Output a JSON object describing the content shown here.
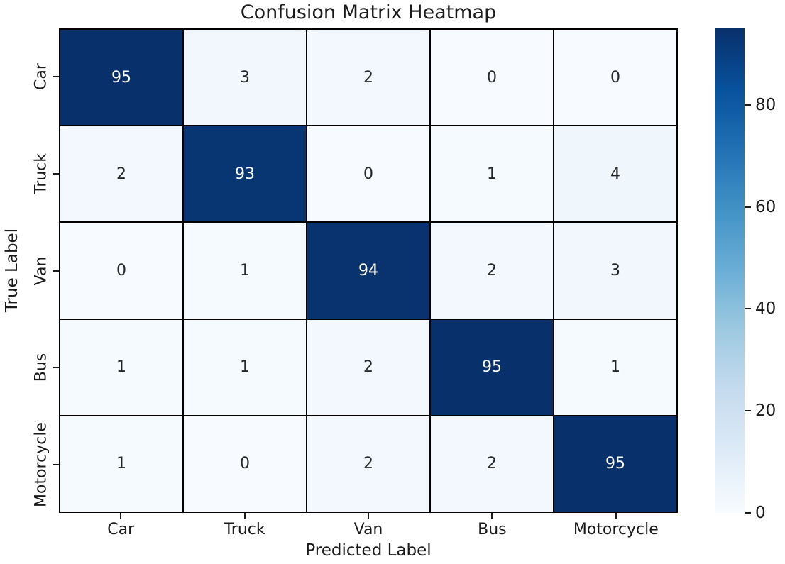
{
  "chart_data": {
    "type": "heatmap",
    "title": "Confusion Matrix Heatmap",
    "xlabel": "Predicted Label",
    "ylabel": "True Label",
    "x_categories": [
      "Car",
      "Truck",
      "Van",
      "Bus",
      "Motorcycle"
    ],
    "y_categories": [
      "Car",
      "Truck",
      "Van",
      "Bus",
      "Motorcycle"
    ],
    "values": [
      [
        95,
        3,
        2,
        0,
        0
      ],
      [
        2,
        93,
        0,
        1,
        4
      ],
      [
        0,
        1,
        94,
        2,
        3
      ],
      [
        1,
        1,
        2,
        95,
        1
      ],
      [
        1,
        0,
        2,
        2,
        95
      ]
    ],
    "vmin": 0,
    "vmax": 95,
    "colormap": "Blues",
    "colormap_stops": [
      "#f7fbff",
      "#deebf7",
      "#c6dbef",
      "#9ecae1",
      "#6baed6",
      "#4292c6",
      "#2171b5",
      "#08519c",
      "#08306b"
    ],
    "colorbar_ticks": [
      0,
      20,
      40,
      60,
      80
    ],
    "annotated": true,
    "grid_line_color": "#000000",
    "annotation_color_light_cells": "#262626",
    "annotation_color_dark_cells": "#ffffff",
    "legend_position": "right-colorbar",
    "grid": "off"
  }
}
